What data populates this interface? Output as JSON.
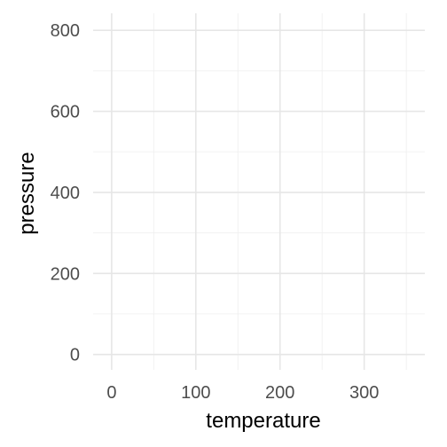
{
  "chart_data": {
    "type": "scatter",
    "title": "",
    "xlabel": "temperature",
    "ylabel": "pressure",
    "x_ticks": [
      0,
      100,
      200,
      300
    ],
    "y_ticks": [
      0,
      200,
      400,
      600,
      800
    ],
    "xlim": [
      -22,
      372
    ],
    "ylim": [
      -38,
      842
    ],
    "grid": true,
    "theme": "minimal",
    "series": [
      {
        "x": [],
        "y": []
      }
    ]
  }
}
